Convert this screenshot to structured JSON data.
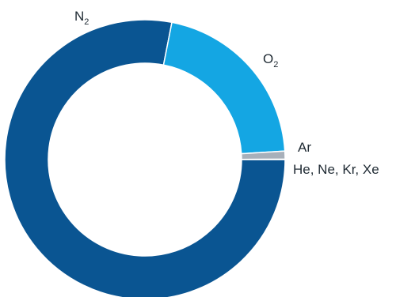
{
  "chart_data": {
    "type": "pie",
    "title": "",
    "categories": [
      "N2",
      "O2",
      "Ar",
      "He, Ne, Kr, Xe"
    ],
    "values": [
      78.08,
      20.95,
      0.93,
      0.04
    ],
    "colors": [
      "#0a5592",
      "#14a6e3",
      "#a8b0ba",
      "#c98a6b"
    ],
    "labels": {
      "n2": {
        "main": "N",
        "sub": "2"
      },
      "o2": {
        "main": "O",
        "sub": "2"
      },
      "ar": "Ar",
      "noble": "He, Ne, Kr, Xe"
    }
  }
}
